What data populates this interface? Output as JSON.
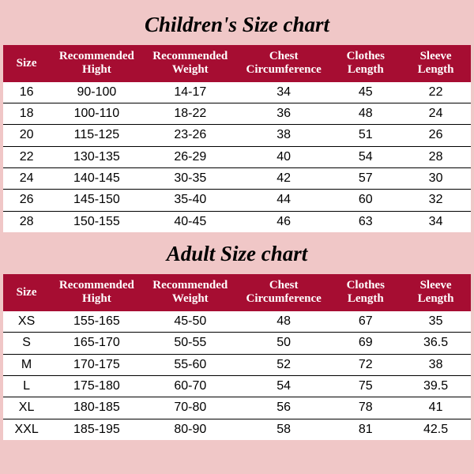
{
  "colors": {
    "page_bg": "#f0c7c7",
    "header_bg": "#a60d32",
    "header_text": "#ffffff",
    "row_bg": "#ffffff",
    "row_text": "#000000",
    "rule": "#000000"
  },
  "typography": {
    "title_font": "Georgia serif italic bold",
    "title_fontsize_pt": 20,
    "header_font": "Georgia serif bold",
    "header_fontsize_pt": 11,
    "body_font": "Arial",
    "body_fontsize_pt": 12
  },
  "headers": [
    "Size",
    "Recommended\nHight",
    "Recommended\nWeight",
    "Chest\nCircumference",
    "Clothes\nLength",
    "Sleeve\nLength"
  ],
  "header_parts": {
    "size": "Size",
    "hight1": "Recommended",
    "hight2": "Hight",
    "weight1": "Recommended",
    "weight2": "Weight",
    "chest1": "Chest",
    "chest2": "Circumference",
    "clothes1": "Clothes",
    "clothes2": "Length",
    "sleeve1": "Sleeve",
    "sleeve2": "Length"
  },
  "column_widths_pct": [
    10,
    20,
    20,
    20,
    15,
    15
  ],
  "children": {
    "title": "Children's Size chart",
    "rows": [
      [
        "16",
        "90-100",
        "14-17",
        "34",
        "45",
        "22"
      ],
      [
        "18",
        "100-110",
        "18-22",
        "36",
        "48",
        "24"
      ],
      [
        "20",
        "115-125",
        "23-26",
        "38",
        "51",
        "26"
      ],
      [
        "22",
        "130-135",
        "26-29",
        "40",
        "54",
        "28"
      ],
      [
        "24",
        "140-145",
        "30-35",
        "42",
        "57",
        "30"
      ],
      [
        "26",
        "145-150",
        "35-40",
        "44",
        "60",
        "32"
      ],
      [
        "28",
        "150-155",
        "40-45",
        "46",
        "63",
        "34"
      ]
    ]
  },
  "adult": {
    "title": "Adult Size chart",
    "rows": [
      [
        "XS",
        "155-165",
        "45-50",
        "48",
        "67",
        "35"
      ],
      [
        "S",
        "165-170",
        "50-55",
        "50",
        "69",
        "36.5"
      ],
      [
        "M",
        "170-175",
        "55-60",
        "52",
        "72",
        "38"
      ],
      [
        "L",
        "175-180",
        "60-70",
        "54",
        "75",
        "39.5"
      ],
      [
        "XL",
        "180-185",
        "70-80",
        "56",
        "78",
        "41"
      ],
      [
        "XXL",
        "185-195",
        "80-90",
        "58",
        "81",
        "42.5"
      ]
    ]
  }
}
